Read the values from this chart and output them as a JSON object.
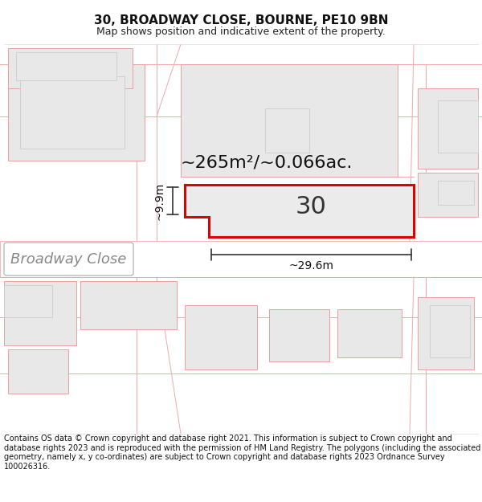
{
  "title_line1": "30, BROADWAY CLOSE, BOURNE, PE10 9BN",
  "title_line2": "Map shows position and indicative extent of the property.",
  "footer_text": "Contains OS data © Crown copyright and database right 2021. This information is subject to Crown copyright and database rights 2023 and is reproduced with the permission of HM Land Registry. The polygons (including the associated geometry, namely x, y co-ordinates) are subject to Crown copyright and database rights 2023 Ordnance Survey 100026316.",
  "background_color": "#ffffff",
  "map_bg_color": "#ffffff",
  "plot_fill_color": "#ebebeb",
  "plot_border_color": "#e00000",
  "neighbor_fill_color": "#e8e8e8",
  "neighbor_border_color": "#e8a0a0",
  "road_line_color": "#f0aaaa",
  "area_label": "~265m²/~0.066ac.",
  "width_label": "~29.6m",
  "height_label": "~9.9m",
  "plot_number": "30",
  "street_label": "Broadway Close",
  "title_fontsize": 11,
  "subtitle_fontsize": 9,
  "footer_fontsize": 7,
  "area_fontsize": 16,
  "number_fontsize": 22,
  "street_fontsize": 13,
  "dim_fontsize": 10
}
